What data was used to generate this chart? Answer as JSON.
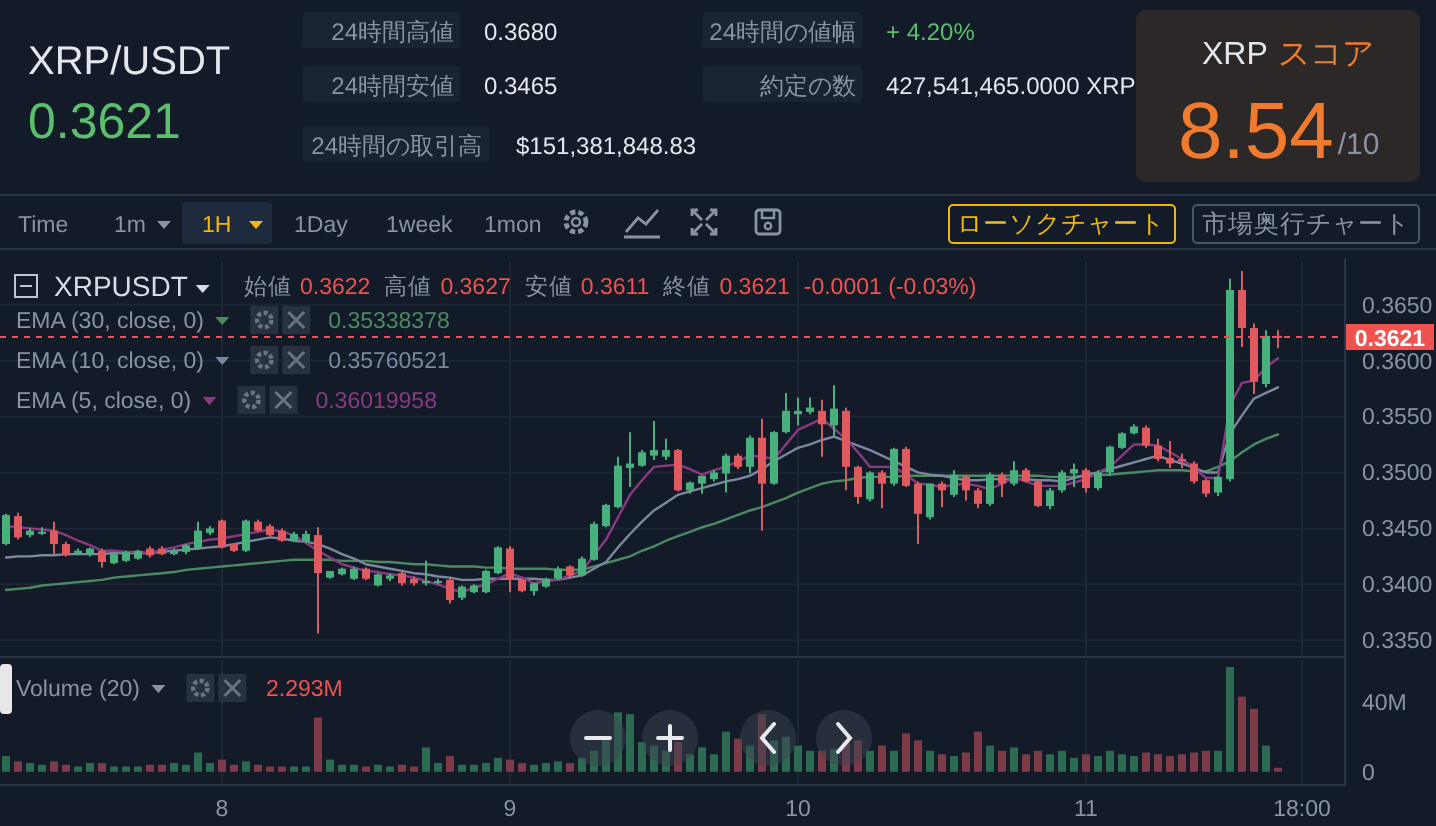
{
  "chart_data": [
    {
      "type": "other",
      "title": "XRP/USDT",
      "subtitle": "0.3621",
      "annotations": [
        "24時間高値",
        "0.3680",
        "24時間安値",
        "0.3465",
        "24時間の取引高",
        "$151,381,848.83",
        "24時間の値幅",
        "+ 4.20%",
        "約定の数",
        "427,541,465.0000 XRP",
        "XRP",
        "スコア",
        "8.54",
        "/10",
        "Time",
        "1m",
        "1H",
        "1Day",
        "1week",
        "1mon",
        "ローソクチャート",
        "市場奥行チャート"
      ]
    },
    {
      "type": "candlestick",
      "title": "XRPUSDT",
      "categories": [
        null,
        null,
        null,
        null,
        null,
        null,
        null,
        null,
        null,
        null,
        null,
        null,
        null,
        null,
        null,
        null,
        null,
        null,
        null,
        null,
        null,
        null,
        null,
        null,
        null,
        null,
        null,
        null,
        null,
        null,
        null,
        null,
        null,
        null,
        null,
        null,
        null,
        null,
        null,
        null,
        null,
        null,
        null,
        null,
        null,
        null,
        null,
        null,
        null,
        null,
        null,
        null,
        null,
        null,
        null,
        null,
        null,
        null,
        null,
        null,
        null,
        null,
        null,
        null,
        null,
        null,
        null,
        null,
        null,
        null,
        null,
        null,
        null,
        null,
        null,
        null,
        null,
        null,
        null,
        null,
        null,
        null,
        null,
        null,
        null,
        null,
        null,
        null,
        null,
        null,
        null,
        null,
        null,
        null,
        null,
        null,
        null,
        null,
        null,
        null,
        null,
        null,
        null,
        null,
        null,
        null,
        null,
        null,
        null,
        null,
        null,
        null
      ],
      "ohlc": [
        [
          0.3436,
          0.3463,
          0.3435,
          0.3462
        ],
        [
          0.3461,
          0.3464,
          0.344,
          0.3442
        ],
        [
          0.3444,
          0.345,
          0.3442,
          0.3448
        ],
        [
          0.3446,
          0.3451,
          0.3444,
          0.3447
        ],
        [
          0.3448,
          0.3456,
          0.3427,
          0.3436
        ],
        [
          0.3436,
          0.3438,
          0.3425,
          0.3426
        ],
        [
          0.3427,
          0.3432,
          0.3426,
          0.343
        ],
        [
          0.3427,
          0.3433,
          0.3425,
          0.3432
        ],
        [
          0.343,
          0.3432,
          0.3415,
          0.342
        ],
        [
          0.3419,
          0.3428,
          0.3418,
          0.3427
        ],
        [
          0.3421,
          0.343,
          0.342,
          0.3429
        ],
        [
          0.3423,
          0.3431,
          0.3422,
          0.343
        ],
        [
          0.3432,
          0.3434,
          0.3424,
          0.3426
        ],
        [
          0.3432,
          0.3434,
          0.3426,
          0.3427
        ],
        [
          0.3427,
          0.3432,
          0.3426,
          0.343
        ],
        [
          0.3429,
          0.3436,
          0.3427,
          0.3435
        ],
        [
          0.3432,
          0.3456,
          0.3431,
          0.3448
        ],
        [
          0.3446,
          0.3452,
          0.3444,
          0.345
        ],
        [
          0.3457,
          0.3458,
          0.3432,
          0.3433
        ],
        [
          0.3436,
          0.3437,
          0.3429,
          0.343
        ],
        [
          0.343,
          0.3458,
          0.3429,
          0.3457
        ],
        [
          0.3456,
          0.3458,
          0.3447,
          0.3448
        ],
        [
          0.3452,
          0.3454,
          0.3443,
          0.3444
        ],
        [
          0.3448,
          0.345,
          0.3438,
          0.3439
        ],
        [
          0.3439,
          0.3447,
          0.3438,
          0.3445
        ],
        [
          0.3438,
          0.3448,
          0.3437,
          0.3445
        ],
        [
          0.3444,
          0.3451,
          0.3356,
          0.341
        ],
        [
          0.3406,
          0.3412,
          0.3405,
          0.3412
        ],
        [
          0.3409,
          0.3415,
          0.3408,
          0.3414
        ],
        [
          0.3405,
          0.3416,
          0.3404,
          0.3414
        ],
        [
          0.3414,
          0.3415,
          0.3404,
          0.3405
        ],
        [
          0.3399,
          0.341,
          0.3398,
          0.3409
        ],
        [
          0.3405,
          0.341,
          0.3403,
          0.3408
        ],
        [
          0.341,
          0.3412,
          0.3399,
          0.3401
        ],
        [
          0.3405,
          0.3407,
          0.3399,
          0.3401
        ],
        [
          0.3401,
          0.3421,
          0.3399,
          0.3403
        ],
        [
          0.3402,
          0.3405,
          0.34,
          0.3403
        ],
        [
          0.3404,
          0.3406,
          0.3383,
          0.3386
        ],
        [
          0.3388,
          0.3399,
          0.3386,
          0.3398
        ],
        [
          0.3393,
          0.34,
          0.3392,
          0.3399
        ],
        [
          0.3393,
          0.3413,
          0.3392,
          0.3412
        ],
        [
          0.341,
          0.3434,
          0.3409,
          0.3433
        ],
        [
          0.3432,
          0.3434,
          0.3393,
          0.3404
        ],
        [
          0.3404,
          0.3405,
          0.3393,
          0.3394
        ],
        [
          0.3394,
          0.3401,
          0.339,
          0.3401
        ],
        [
          0.3398,
          0.3406,
          0.3397,
          0.3405
        ],
        [
          0.3405,
          0.3416,
          0.3404,
          0.3414
        ],
        [
          0.3416,
          0.3417,
          0.3406,
          0.3408
        ],
        [
          0.3408,
          0.3425,
          0.3407,
          0.3423
        ],
        [
          0.3422,
          0.3456,
          0.3421,
          0.3454
        ],
        [
          0.3452,
          0.3472,
          0.3451,
          0.3471
        ],
        [
          0.3469,
          0.3514,
          0.3468,
          0.3506
        ],
        [
          0.3504,
          0.3536,
          0.3487,
          0.3508
        ],
        [
          0.3506,
          0.352,
          0.3505,
          0.3518
        ],
        [
          0.3515,
          0.3546,
          0.3511,
          0.352
        ],
        [
          0.3514,
          0.353,
          0.3511,
          0.352
        ],
        [
          0.352,
          0.3521,
          0.3483,
          0.3484
        ],
        [
          0.3484,
          0.3492,
          0.3481,
          0.3491
        ],
        [
          0.349,
          0.3497,
          0.3481,
          0.3497
        ],
        [
          0.3494,
          0.3502,
          0.3492,
          0.35
        ],
        [
          0.3499,
          0.3517,
          0.3482,
          0.3515
        ],
        [
          0.3515,
          0.3517,
          0.3503,
          0.3505
        ],
        [
          0.3505,
          0.3533,
          0.3499,
          0.3531
        ],
        [
          0.3531,
          0.3548,
          0.3448,
          0.349
        ],
        [
          0.349,
          0.3537,
          0.3489,
          0.3536
        ],
        [
          0.3536,
          0.3571,
          0.3535,
          0.3555
        ],
        [
          0.3552,
          0.3567,
          0.3542,
          0.3555
        ],
        [
          0.3554,
          0.3567,
          0.3552,
          0.3558
        ],
        [
          0.3555,
          0.3565,
          0.3514,
          0.3543
        ],
        [
          0.3542,
          0.3578,
          0.3532,
          0.3557
        ],
        [
          0.3555,
          0.3558,
          0.3484,
          0.3505
        ],
        [
          0.3505,
          0.3506,
          0.3472,
          0.3478
        ],
        [
          0.3476,
          0.3501,
          0.3474,
          0.35
        ],
        [
          0.35,
          0.3502,
          0.3468,
          0.349
        ],
        [
          0.349,
          0.3522,
          0.3488,
          0.3521
        ],
        [
          0.3521,
          0.3523,
          0.3487,
          0.3488
        ],
        [
          0.349,
          0.3492,
          0.3436,
          0.3463
        ],
        [
          0.346,
          0.349,
          0.3458,
          0.349
        ],
        [
          0.349,
          0.3492,
          0.3469,
          0.3484
        ],
        [
          0.348,
          0.3502,
          0.3478,
          0.3498
        ],
        [
          0.3496,
          0.3498,
          0.3475,
          0.3484
        ],
        [
          0.3484,
          0.3486,
          0.3468,
          0.3472
        ],
        [
          0.3472,
          0.35,
          0.347,
          0.3498
        ],
        [
          0.3498,
          0.35,
          0.3478,
          0.349
        ],
        [
          0.349,
          0.351,
          0.3488,
          0.3502
        ],
        [
          0.3502,
          0.3504,
          0.3491,
          0.3492
        ],
        [
          0.3492,
          0.3493,
          0.3469,
          0.347
        ],
        [
          0.347,
          0.3486,
          0.3467,
          0.3484
        ],
        [
          0.3484,
          0.3502,
          0.3482,
          0.35
        ],
        [
          0.3499,
          0.3508,
          0.3487,
          0.3503
        ],
        [
          0.3502,
          0.3504,
          0.3482,
          0.3486
        ],
        [
          0.3486,
          0.3502,
          0.3484,
          0.35
        ],
        [
          0.35,
          0.3524,
          0.3497,
          0.3523
        ],
        [
          0.3522,
          0.3536,
          0.3521,
          0.3535
        ],
        [
          0.3535,
          0.3543,
          0.3534,
          0.3541
        ],
        [
          0.354,
          0.3542,
          0.3522,
          0.3524
        ],
        [
          0.3524,
          0.353,
          0.351,
          0.3512
        ],
        [
          0.3513,
          0.3528,
          0.3504,
          0.3508
        ],
        [
          0.3512,
          0.3517,
          0.3504,
          0.351
        ],
        [
          0.3508,
          0.351,
          0.349,
          0.3492
        ],
        [
          0.3493,
          0.3494,
          0.3478,
          0.3481
        ],
        [
          0.3482,
          0.3497,
          0.3479,
          0.3496
        ],
        [
          0.3494,
          0.3673,
          0.3492,
          0.3663
        ],
        [
          0.3663,
          0.368,
          0.3612,
          0.3629
        ],
        [
          0.3629,
          0.3633,
          0.357,
          0.3581
        ],
        [
          0.3579,
          0.3627,
          0.3576,
          0.3622
        ],
        [
          0.3622,
          0.3627,
          0.3611,
          0.3621
        ],
        null,
        null,
        null,
        null,
        null
      ],
      "colors": [
        "#48b07c",
        "#e0595e",
        "#48b07c",
        "#48b07c",
        "#e0595e",
        "#e0595e",
        "#48b07c",
        "#48b07c",
        "#e0595e",
        "#48b07c",
        "#48b07c",
        "#48b07c",
        "#e0595e",
        "#e0595e",
        "#48b07c",
        "#48b07c",
        "#48b07c",
        "#48b07c",
        "#e0595e",
        "#e0595e",
        "#48b07c",
        "#e0595e",
        "#e0595e",
        "#e0595e",
        "#48b07c",
        "#48b07c",
        "#e0595e",
        "#48b07c",
        "#48b07c",
        "#48b07c",
        "#e0595e",
        "#48b07c",
        "#48b07c",
        "#e0595e",
        "#e0595e",
        "#48b07c",
        "#48b07c",
        "#e0595e",
        "#48b07c",
        "#48b07c",
        "#48b07c",
        "#48b07c",
        "#e0595e",
        "#e0595e",
        "#48b07c",
        "#48b07c",
        "#48b07c",
        "#e0595e",
        "#48b07c",
        "#48b07c",
        "#48b07c",
        "#48b07c",
        "#48b07c",
        "#48b07c",
        "#48b07c",
        "#48b07c",
        "#e0595e",
        "#48b07c",
        "#48b07c",
        "#48b07c",
        "#48b07c",
        "#e0595e",
        "#48b07c",
        "#e0595e",
        "#48b07c",
        "#48b07c",
        "#48b07c",
        "#48b07c",
        "#e0595e",
        "#48b07c",
        "#e0595e",
        "#e0595e",
        "#48b07c",
        "#e0595e",
        "#48b07c",
        "#e0595e",
        "#e0595e",
        "#48b07c",
        "#e0595e",
        "#48b07c",
        "#e0595e",
        "#e0595e",
        "#48b07c",
        "#e0595e",
        "#48b07c",
        "#e0595e",
        "#e0595e",
        "#48b07c",
        "#48b07c",
        "#48b07c",
        "#e0595e",
        "#48b07c",
        "#48b07c",
        "#48b07c",
        "#48b07c",
        "#e0595e",
        "#e0595e",
        "#e0595e",
        "#e0595e",
        "#e0595e",
        "#e0595e",
        "#48b07c",
        "#48b07c",
        "#e0595e",
        "#e0595e",
        "#48b07c",
        "#e0595e",
        null,
        null,
        null,
        null,
        null
      ],
      "ylim": [
        0.3336,
        0.3688
      ],
      "yticks": [
        {
          "value": 0.335,
          "label": "0.3350"
        },
        {
          "value": 0.34,
          "label": "0.3400"
        },
        {
          "value": 0.345,
          "label": "0.3450"
        },
        {
          "value": 0.35,
          "label": "0.3500"
        },
        {
          "value": 0.355,
          "label": "0.3550"
        },
        {
          "value": 0.36,
          "label": "0.3600"
        },
        {
          "value": 0.365,
          "label": "0.3650"
        }
      ],
      "grid": true,
      "legend": "top left",
      "series": [
        {
          "type": "line",
          "name": "EMA (30, close, 0)",
          "color": "#4c8a62",
          "values": [
            0.3395,
            0.3396,
            0.3397,
            0.3399,
            0.34,
            0.3401,
            0.3402,
            0.3403,
            0.3404,
            0.3406,
            0.3407,
            0.3408,
            0.3409,
            0.341,
            0.3411,
            0.3413,
            0.3414,
            0.3415,
            0.3416,
            0.3417,
            0.3418,
            0.3419,
            0.342,
            0.3421,
            0.3422,
            0.3422,
            0.3422,
            0.3422,
            0.3421,
            0.3421,
            0.3421,
            0.342,
            0.342,
            0.3419,
            0.3418,
            0.3418,
            0.3417,
            0.3416,
            0.3416,
            0.3416,
            0.3415,
            0.3415,
            0.3414,
            0.3414,
            0.3414,
            0.3414,
            0.3413,
            0.3413,
            0.3413,
            0.3416,
            0.3419,
            0.3422,
            0.3425,
            0.343,
            0.3434,
            0.3439,
            0.3443,
            0.3447,
            0.3451,
            0.3454,
            0.3458,
            0.3462,
            0.3466,
            0.3469,
            0.3473,
            0.3477,
            0.3482,
            0.3486,
            0.349,
            0.3492,
            0.3493,
            0.3495,
            0.3496,
            0.3496,
            0.3496,
            0.3497,
            0.3497,
            0.3497,
            0.3497,
            0.3497,
            0.3497,
            0.3497,
            0.3497,
            0.3497,
            0.3497,
            0.3497,
            0.3497,
            0.3496,
            0.3496,
            0.3496,
            0.3497,
            0.3498,
            0.3498,
            0.3499,
            0.35,
            0.3501,
            0.3502,
            0.3502,
            0.3502,
            0.3501,
            0.3501,
            0.3505,
            0.351,
            0.3518,
            0.3525,
            0.353,
            0.3534,
            null,
            null,
            null,
            null,
            null
          ]
        },
        {
          "type": "line",
          "name": "EMA (10, close, 0)",
          "color": "#7d87a0",
          "values": [
            0.3424,
            0.3425,
            0.3425,
            0.3426,
            0.3426,
            0.3427,
            0.3427,
            0.3427,
            0.3427,
            0.3428,
            0.3428,
            0.3428,
            0.3428,
            0.3429,
            0.343,
            0.3431,
            0.3432,
            0.3433,
            0.3434,
            0.3436,
            0.3438,
            0.344,
            0.3442,
            0.3441,
            0.3439,
            0.3438,
            0.3436,
            0.3432,
            0.3427,
            0.3423,
            0.3418,
            0.3416,
            0.3414,
            0.3412,
            0.341,
            0.3409,
            0.3407,
            0.3406,
            0.3404,
            0.3404,
            0.3405,
            0.3405,
            0.3405,
            0.3405,
            0.3405,
            0.3404,
            0.3404,
            0.3406,
            0.3408,
            0.3414,
            0.342,
            0.3433,
            0.3445,
            0.3456,
            0.3466,
            0.3473,
            0.348,
            0.3483,
            0.3486,
            0.3489,
            0.3492,
            0.3494,
            0.3497,
            0.3503,
            0.351,
            0.3516,
            0.3522,
            0.3525,
            0.3529,
            0.3532,
            0.3528,
            0.3524,
            0.352,
            0.3515,
            0.351,
            0.3505,
            0.35,
            0.3498,
            0.3497,
            0.3495,
            0.3493,
            0.3493,
            0.3494,
            0.3494,
            0.3494,
            0.3494,
            0.3493,
            0.3493,
            0.3492,
            0.3495,
            0.3498,
            0.35,
            0.3503,
            0.3506,
            0.3509,
            0.3512,
            0.3515,
            0.3511,
            0.3508,
            0.3504,
            0.35,
            0.35,
            0.3535,
            0.3551,
            0.3566,
            0.3571,
            0.3576,
            null,
            null,
            null,
            null,
            null
          ]
        },
        {
          "type": "line",
          "name": "EMA (5, close, 0)",
          "color": "#8a3a80",
          "values": [
            0.3452,
            0.3451,
            0.345,
            0.3449,
            0.3448,
            0.3444,
            0.3439,
            0.3435,
            0.343,
            0.343,
            0.3429,
            0.3429,
            0.3428,
            0.3431,
            0.3433,
            0.3436,
            0.3438,
            0.344,
            0.3441,
            0.3443,
            0.3445,
            0.3447,
            0.3449,
            0.3447,
            0.3444,
            0.3437,
            0.343,
            0.3424,
            0.3418,
            0.3415,
            0.3412,
            0.3411,
            0.3409,
            0.3408,
            0.3406,
            0.3403,
            0.34,
            0.3396,
            0.3393,
            0.3397,
            0.34,
            0.3405,
            0.341,
            0.3406,
            0.3401,
            0.3403,
            0.3404,
            0.3408,
            0.3412,
            0.3426,
            0.344,
            0.346,
            0.348,
            0.3493,
            0.3505,
            0.3506,
            0.3507,
            0.3503,
            0.3498,
            0.3502,
            0.3505,
            0.351,
            0.3515,
            0.3514,
            0.3512,
            0.3525,
            0.3538,
            0.3543,
            0.3548,
            0.3539,
            0.353,
            0.3518,
            0.3505,
            0.3505,
            0.3505,
            0.3498,
            0.349,
            0.3489,
            0.3487,
            0.3489,
            0.349,
            0.3488,
            0.3485,
            0.349,
            0.3495,
            0.3492,
            0.3488,
            0.3488,
            0.3488,
            0.3491,
            0.3494,
            0.35,
            0.3505,
            0.3515,
            0.3525,
            0.3525,
            0.3524,
            0.3518,
            0.3512,
            0.3504,
            0.3495,
            0.3495,
            0.356,
            0.358,
            0.3582,
            0.3594,
            0.3602,
            null,
            null,
            null,
            null,
            null
          ]
        }
      ],
      "ref_lines": [
        {
          "axis": "y",
          "value": 0.3621,
          "label": "0.3621",
          "color": "#ef5350",
          "line_style": "dashed"
        }
      ],
      "annotations": [
        "始値",
        "0.3622",
        "高値",
        "0.3627",
        "安値",
        "0.3611",
        "終値",
        "0.3621",
        "-0.0001 (-0.03%)",
        "0.35338378",
        "0.35760521",
        "0.36019958"
      ]
    },
    {
      "type": "bar",
      "title": "Volume (20)",
      "categories": [
        null,
        null,
        null,
        null,
        null,
        null,
        null,
        null,
        null,
        null,
        null,
        null,
        null,
        null,
        null,
        null,
        null,
        null,
        "8",
        null,
        null,
        null,
        null,
        null,
        null,
        null,
        null,
        null,
        null,
        null,
        null,
        null,
        null,
        null,
        null,
        null,
        null,
        null,
        null,
        null,
        null,
        null,
        "9",
        null,
        null,
        null,
        null,
        null,
        null,
        null,
        null,
        null,
        null,
        null,
        null,
        null,
        null,
        null,
        null,
        null,
        null,
        null,
        null,
        null,
        null,
        null,
        "10",
        null,
        null,
        null,
        null,
        null,
        null,
        null,
        null,
        null,
        null,
        null,
        null,
        null,
        null,
        null,
        null,
        null,
        null,
        null,
        null,
        null,
        null,
        null,
        "11",
        null,
        null,
        null,
        null,
        null,
        null,
        null,
        null,
        null,
        null,
        null,
        null,
        null,
        null,
        null,
        null,
        null,
        "18:00",
        null,
        null,
        null
      ],
      "values": [
        9,
        6,
        5,
        4,
        6,
        4,
        3,
        5,
        5,
        3,
        3,
        3,
        4,
        4,
        5,
        4,
        11,
        5,
        7,
        4,
        6,
        4,
        3,
        3,
        3,
        3,
        31,
        7,
        4,
        4,
        3,
        4,
        3,
        4,
        3,
        14,
        5,
        9,
        4,
        4,
        5,
        8,
        7,
        5,
        4,
        5,
        6,
        5,
        8,
        12,
        20,
        34,
        33,
        17,
        15,
        12,
        17,
        10,
        14,
        10,
        23,
        19,
        15,
        33,
        18,
        20,
        15,
        12,
        12,
        13,
        17,
        18,
        12,
        15,
        12,
        22,
        18,
        12,
        10,
        9,
        11,
        23,
        15,
        12,
        14,
        10,
        12,
        10,
        12,
        8,
        10,
        9,
        12,
        10,
        9,
        11,
        10,
        9,
        10,
        11,
        12,
        12,
        60,
        43,
        36,
        15,
        2.293,
        null,
        null,
        null,
        null,
        null
      ],
      "colors": [
        "#2d6a52",
        "#7c3b47",
        "#2d6a52",
        "#2d6a52",
        "#7c3b47",
        "#7c3b47",
        "#2d6a52",
        "#2d6a52",
        "#7c3b47",
        "#2d6a52",
        "#2d6a52",
        "#2d6a52",
        "#7c3b47",
        "#7c3b47",
        "#2d6a52",
        "#2d6a52",
        "#2d6a52",
        "#2d6a52",
        "#7c3b47",
        "#7c3b47",
        "#2d6a52",
        "#7c3b47",
        "#7c3b47",
        "#7c3b47",
        "#2d6a52",
        "#2d6a52",
        "#7c3b47",
        "#2d6a52",
        "#2d6a52",
        "#2d6a52",
        "#7c3b47",
        "#2d6a52",
        "#2d6a52",
        "#7c3b47",
        "#7c3b47",
        "#2d6a52",
        "#2d6a52",
        "#7c3b47",
        "#2d6a52",
        "#2d6a52",
        "#2d6a52",
        "#2d6a52",
        "#7c3b47",
        "#7c3b47",
        "#2d6a52",
        "#2d6a52",
        "#2d6a52",
        "#7c3b47",
        "#2d6a52",
        "#2d6a52",
        "#2d6a52",
        "#2d6a52",
        "#2d6a52",
        "#2d6a52",
        "#2d6a52",
        "#2d6a52",
        "#7c3b47",
        "#2d6a52",
        "#2d6a52",
        "#2d6a52",
        "#2d6a52",
        "#7c3b47",
        "#2d6a52",
        "#7c3b47",
        "#2d6a52",
        "#2d6a52",
        "#2d6a52",
        "#2d6a52",
        "#7c3b47",
        "#2d6a52",
        "#7c3b47",
        "#7c3b47",
        "#2d6a52",
        "#7c3b47",
        "#2d6a52",
        "#7c3b47",
        "#7c3b47",
        "#2d6a52",
        "#7c3b47",
        "#2d6a52",
        "#7c3b47",
        "#7c3b47",
        "#2d6a52",
        "#7c3b47",
        "#2d6a52",
        "#7c3b47",
        "#7c3b47",
        "#2d6a52",
        "#2d6a52",
        "#2d6a52",
        "#7c3b47",
        "#2d6a52",
        "#2d6a52",
        "#2d6a52",
        "#2d6a52",
        "#7c3b47",
        "#7c3b47",
        "#7c3b47",
        "#7c3b47",
        "#7c3b47",
        "#7c3b47",
        "#2d6a52",
        "#2d6a52",
        "#7c3b47",
        "#7c3b47",
        "#2d6a52",
        "#7c3b47",
        null,
        null,
        null,
        null,
        null
      ],
      "ylim": [
        -7,
        64
      ],
      "yticks": [
        0,
        {
          "value": 40,
          "label": "40M"
        }
      ],
      "grid": "x",
      "annotations": [
        "2.293M"
      ]
    }
  ]
}
